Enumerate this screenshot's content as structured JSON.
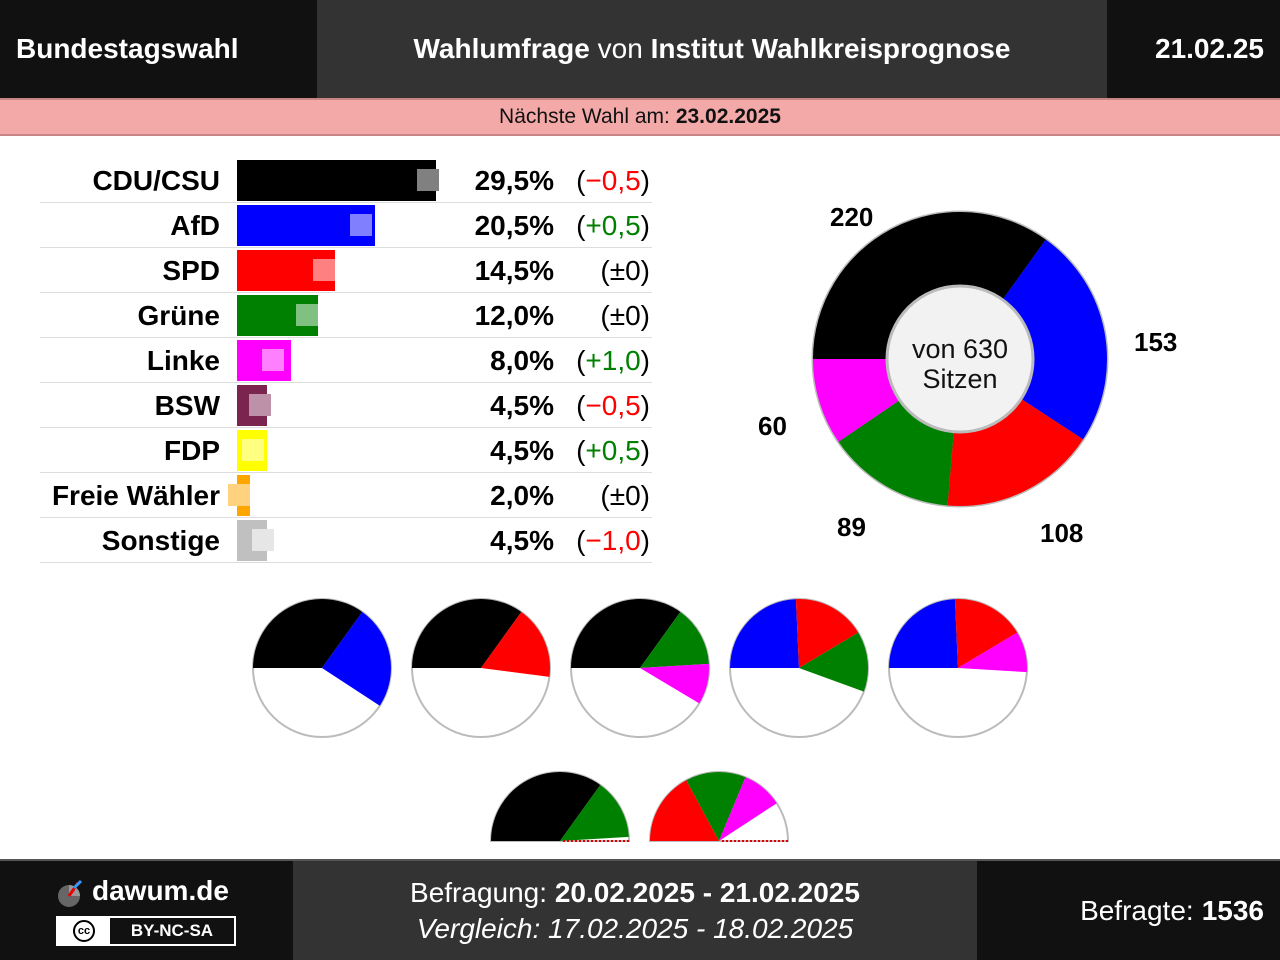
{
  "header": {
    "left": "Bundestagswahl",
    "title_bold1": "Wahlumfrage",
    "title_mid": " von ",
    "title_bold2": "Institut Wahlkreisprognose",
    "date": "21.02.25"
  },
  "next_election": {
    "label": "Nächste Wahl am:",
    "date": "23.02.2025"
  },
  "chart_data": {
    "type": "bar",
    "categories": [
      "CDU/CSU",
      "AfD",
      "SPD",
      "Grüne",
      "Linke",
      "BSW",
      "FDP",
      "Freie Wähler",
      "Sonstige"
    ],
    "values": [
      29.5,
      20.5,
      14.5,
      12.0,
      8.0,
      4.5,
      4.5,
      2.0,
      4.5
    ],
    "previous_values": [
      30.0,
      20.0,
      14.5,
      12.0,
      7.0,
      5.0,
      4.0,
      2.0,
      5.5
    ],
    "value_labels": [
      "29,5%",
      "20,5%",
      "14,5%",
      "12,0%",
      "8,0%",
      "4,5%",
      "4,5%",
      "2,0%",
      "4,5%"
    ],
    "change_labels": [
      "(−0,5)",
      "(+0,5)",
      "(±0)",
      "(±0)",
      "(+1,0)",
      "(−0,5)",
      "(+0,5)",
      "(±0)",
      "(−1,0)"
    ],
    "change_signs": [
      "neg",
      "pos",
      "zero",
      "zero",
      "pos",
      "neg",
      "pos",
      "zero",
      "neg"
    ],
    "colors": [
      "#000000",
      "#0000ff",
      "#ff0000",
      "#008000",
      "#ff00ff",
      "#7b2450",
      "#ffff00",
      "#ffa500",
      "#c0c0c0"
    ],
    "prev_colors": [
      "#808080",
      "#8080ff",
      "#ff8080",
      "#80c080",
      "#ff80ff",
      "#bd92a8",
      "#ffff80",
      "#ffd280",
      "#e6e6e6"
    ],
    "change_colors": {
      "neg": "#ff0000",
      "pos": "#008000",
      "zero": "#000000"
    }
  },
  "seats": {
    "total_label_line1": "von 630",
    "total_label_line2": "Sitzen",
    "total": 630,
    "parties": [
      {
        "name": "CDU/CSU",
        "seats": 220,
        "label": "220",
        "color": "#000000"
      },
      {
        "name": "AfD",
        "seats": 153,
        "label": "153",
        "color": "#0000ff"
      },
      {
        "name": "SPD",
        "seats": 108,
        "label": "108",
        "color": "#ff0000"
      },
      {
        "name": "Grüne",
        "seats": 89,
        "label": "89",
        "color": "#008000"
      },
      {
        "name": "Linke",
        "seats": 60,
        "label": "60",
        "color": "#ff00ff"
      }
    ]
  },
  "coalitions": [
    {
      "parties": [
        "CDU/CSU",
        "AfD"
      ]
    },
    {
      "parties": [
        "CDU/CSU",
        "SPD"
      ]
    },
    {
      "parties": [
        "CDU/CSU",
        "Grüne",
        "Linke"
      ]
    },
    {
      "parties": [
        "AfD",
        "SPD",
        "Grüne"
      ]
    },
    {
      "parties": [
        "AfD",
        "SPD",
        "Linke"
      ]
    },
    {
      "parties": [
        "CDU/CSU",
        "Grüne"
      ]
    },
    {
      "parties": [
        "SPD",
        "Grüne",
        "Linke"
      ]
    }
  ],
  "footer": {
    "brand": "dawum.de",
    "license_left": "cc",
    "license": "BY-NC-SA",
    "survey_label": "Befragung:",
    "survey_period": "20.02.2025 - 21.02.2025",
    "compare_label": "Vergleich:",
    "compare_period": "17.02.2025 - 18.02.2025",
    "respondents_label": "Befragte:",
    "respondents": "1536"
  }
}
